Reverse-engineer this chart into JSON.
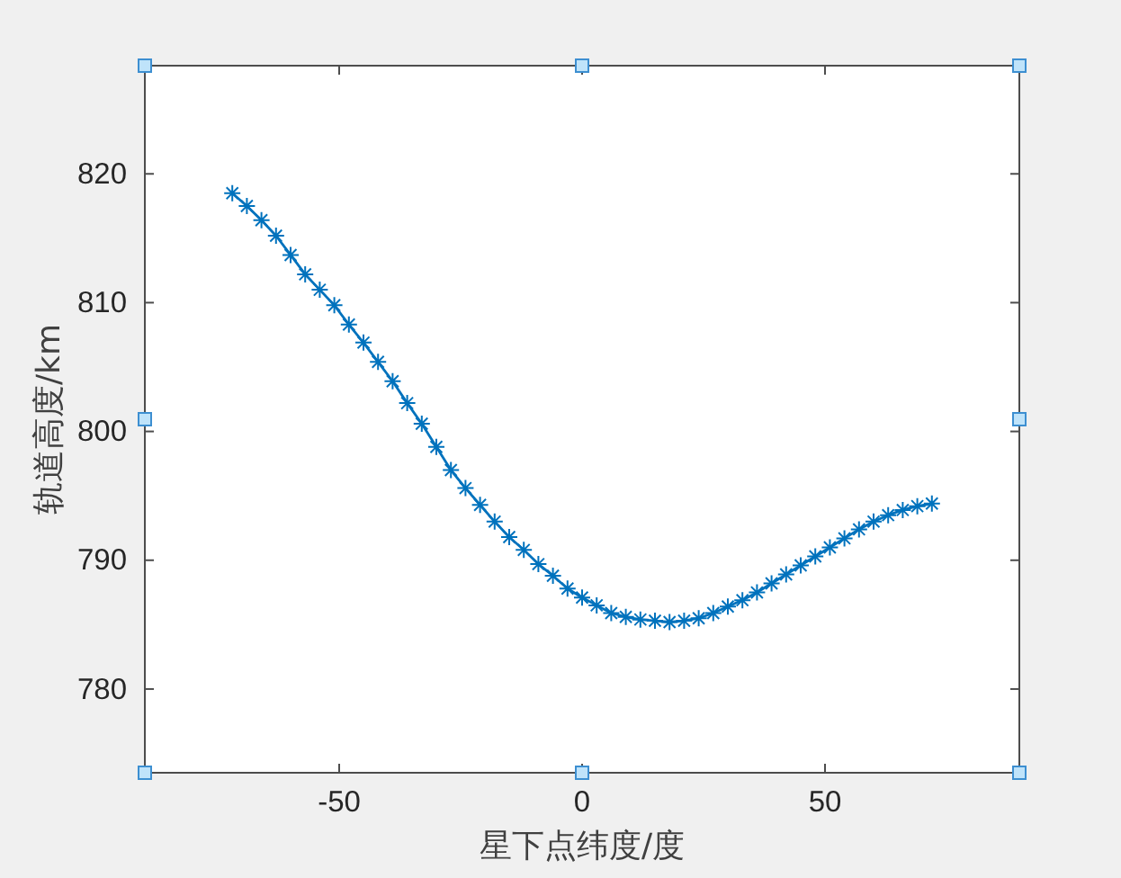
{
  "chart_data": {
    "type": "line",
    "xlabel": "星下点纬度/度",
    "ylabel": "轨道高度/km",
    "x": [
      -72,
      -69,
      -66,
      -63,
      -60,
      -57,
      -54,
      -51,
      -48,
      -45,
      -42,
      -39,
      -36,
      -33,
      -30,
      -27,
      -24,
      -21,
      -18,
      -15,
      -12,
      -9,
      -6,
      -3,
      0,
      3,
      6,
      9,
      12,
      15,
      18,
      21,
      24,
      27,
      30,
      33,
      36,
      39,
      42,
      45,
      48,
      51,
      54,
      57,
      60,
      63,
      66,
      69,
      72
    ],
    "series": [
      {
        "color": "#0072bd",
        "values": [
          818.5,
          817.5,
          816.4,
          815.2,
          813.7,
          812.2,
          811.0,
          809.8,
          808.3,
          806.9,
          805.4,
          803.9,
          802.2,
          800.6,
          798.8,
          797.0,
          795.6,
          794.3,
          793.0,
          791.8,
          790.8,
          789.7,
          788.8,
          787.8,
          787.1,
          786.5,
          785.9,
          785.6,
          785.4,
          785.3,
          785.2,
          785.3,
          785.5,
          785.9,
          786.4,
          786.9,
          787.5,
          788.2,
          788.9,
          789.6,
          790.3,
          791.0,
          791.7,
          792.4,
          793.0,
          793.5,
          793.9,
          794.2,
          794.4
        ]
      }
    ],
    "xlim": [
      -90,
      90
    ],
    "xticks": [
      -50,
      0,
      50
    ],
    "ylim": [
      773.5,
      828.4
    ],
    "yticks": [
      780,
      790,
      800,
      810,
      820
    ],
    "marker": "cross",
    "line_style": "solid"
  }
}
